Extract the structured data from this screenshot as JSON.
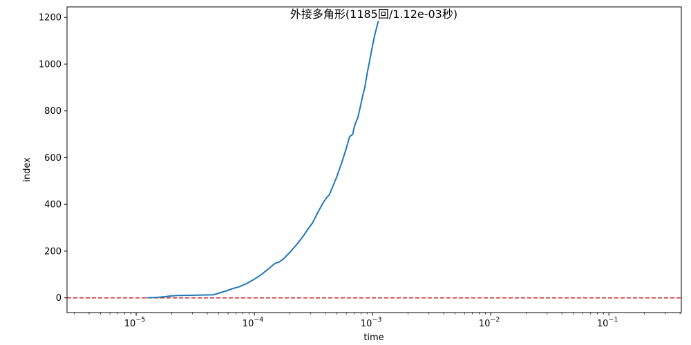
{
  "chart_data": {
    "type": "line",
    "title": "外接多角形(1185回/1.12e-03秒)",
    "xlabel": "time",
    "ylabel": "index",
    "xscale": "log",
    "xlim": [
      2.6e-06,
      0.41
    ],
    "ylim": [
      -63,
      1245
    ],
    "grid": false,
    "colors": {
      "series": "#1f77b4",
      "reference_line": "#d62728"
    },
    "x_ticks": [
      {
        "value": 1e-05,
        "base": "10",
        "exp": "−5"
      },
      {
        "value": 0.0001,
        "base": "10",
        "exp": "−4"
      },
      {
        "value": 0.001,
        "base": "10",
        "exp": "−3"
      },
      {
        "value": 0.01,
        "base": "10",
        "exp": "−2"
      },
      {
        "value": 0.1,
        "base": "10",
        "exp": "−1"
      }
    ],
    "y_ticks": [
      {
        "value": 0,
        "label": "0"
      },
      {
        "value": 200,
        "label": "200"
      },
      {
        "value": 400,
        "label": "400"
      },
      {
        "value": 600,
        "label": "600"
      },
      {
        "value": 800,
        "label": "800"
      },
      {
        "value": 1000,
        "label": "1000"
      },
      {
        "value": 1200,
        "label": "1200"
      }
    ],
    "reference_line": {
      "y": 0,
      "style": "dashed"
    },
    "series": [
      {
        "x": [
          1.22e-05,
          1.5e-05,
          1.75e-05,
          1.95e-05,
          2.2e-05,
          2.8e-05,
          3.6e-05,
          4.5e-05,
          5e-05,
          5.8e-05,
          6.6e-05,
          7.5e-05,
          8.5e-05,
          0.0001,
          0.000115,
          0.00013,
          0.00015,
          0.00016,
          0.000175,
          0.0002,
          0.00023,
          0.00026,
          0.00028,
          0.00031,
          0.00034,
          0.00038,
          0.00041,
          0.00043,
          0.00046,
          0.0005,
          0.00055,
          0.0006,
          0.00064,
          0.00068,
          0.0007,
          0.00072,
          0.00075,
          0.00079,
          0.00083,
          0.00086,
          0.0009,
          0.00095,
          0.001,
          0.00105,
          0.00112
        ],
        "values": [
          0,
          2,
          5,
          8,
          10,
          11,
          12,
          13,
          20,
          30,
          40,
          48,
          60,
          80,
          100,
          122,
          148,
          152,
          165,
          195,
          230,
          265,
          290,
          320,
          360,
          405,
          430,
          440,
          475,
          520,
          580,
          640,
          690,
          700,
          730,
          750,
          770,
          820,
          870,
          900,
          960,
          1020,
          1080,
          1130,
          1185
        ]
      }
    ]
  }
}
